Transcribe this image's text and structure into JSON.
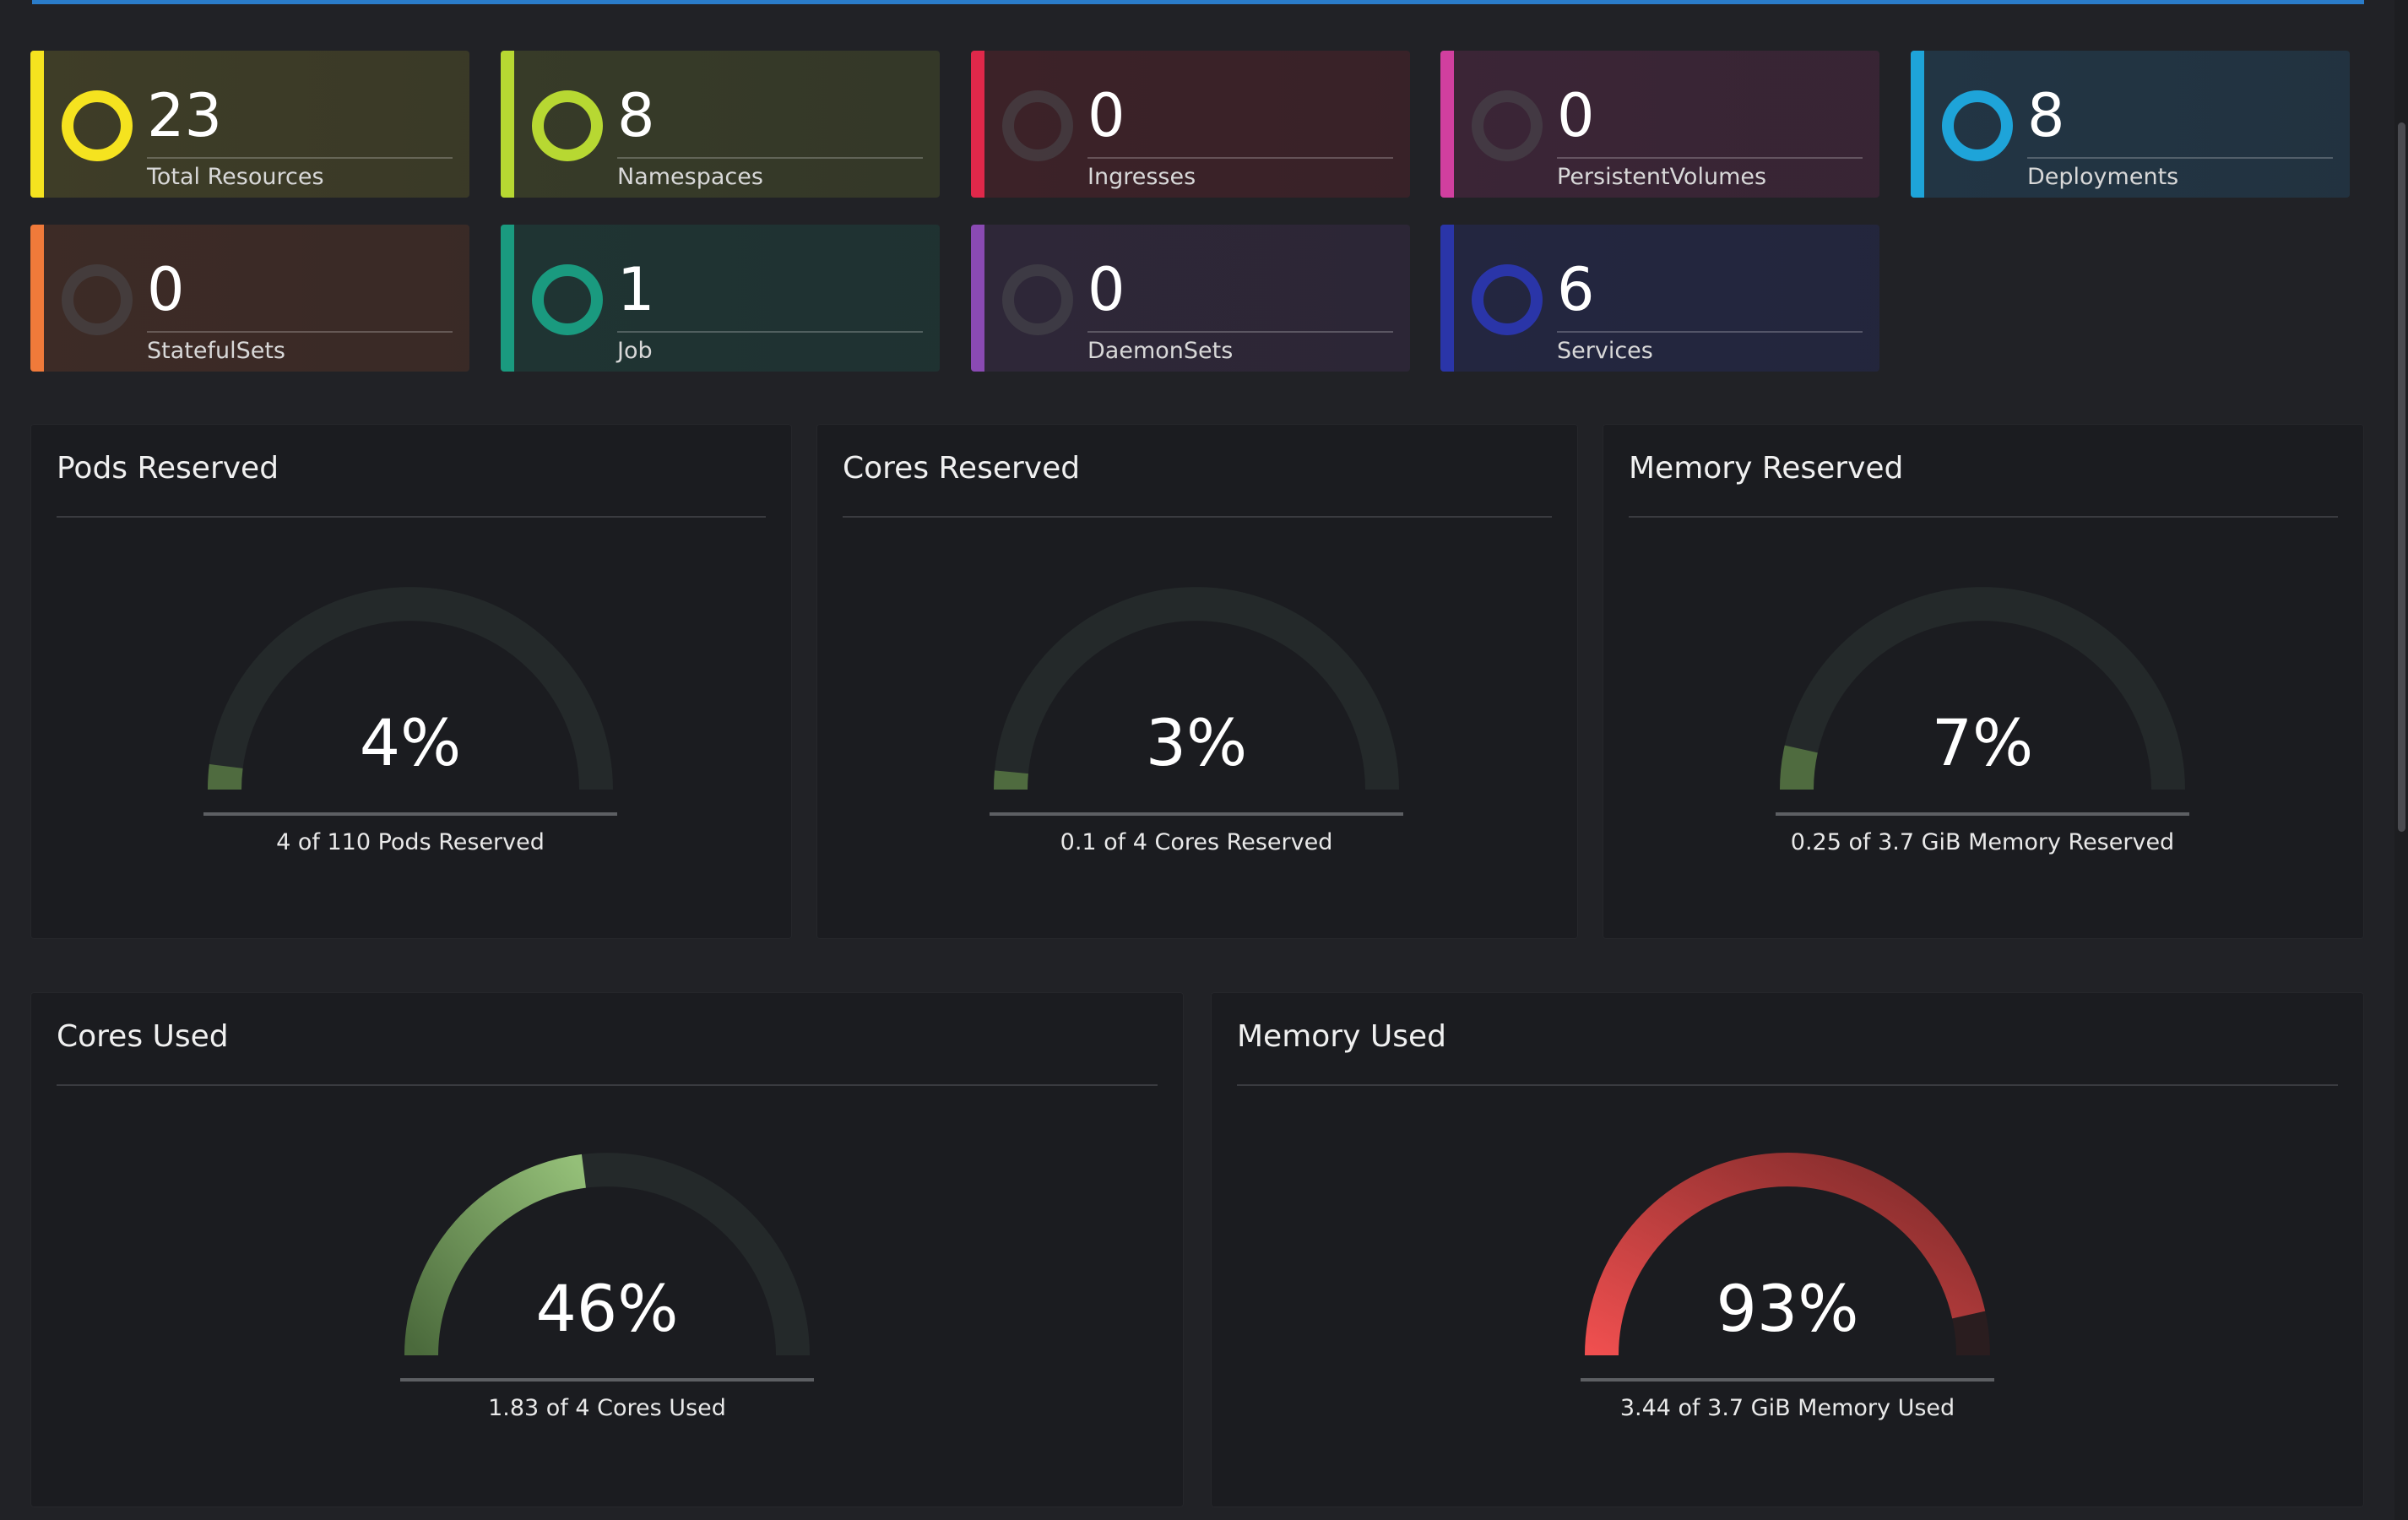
{
  "resources": [
    {
      "count": "23",
      "label": "Total Resources",
      "color": "#f5e31f",
      "bg": "#3e3d27",
      "icon": "ring-icon",
      "active": true
    },
    {
      "count": "8",
      "label": "Namespaces",
      "color": "#b7d832",
      "bg": "#373b28",
      "icon": "ring-icon",
      "active": true
    },
    {
      "count": "0",
      "label": "Ingresses",
      "color": "#e0284a",
      "bg": "#3c2228",
      "icon": "ring-icon",
      "active": false
    },
    {
      "count": "0",
      "label": "PersistentVolumes",
      "color": "#d13f9f",
      "bg": "#3b2536",
      "icon": "ring-icon",
      "active": false
    },
    {
      "count": "8",
      "label": "Deployments",
      "color": "#1ea4d9",
      "bg": "#223544",
      "icon": "ring-icon",
      "active": true
    },
    {
      "count": "0",
      "label": "StatefulSets",
      "color": "#f07a3a",
      "bg": "#3d2b26",
      "icon": "ring-icon",
      "active": false
    },
    {
      "count": "1",
      "label": "Job",
      "color": "#1a9a7f",
      "bg": "#1f3433",
      "icon": "ring-icon",
      "active": true
    },
    {
      "count": "0",
      "label": "DaemonSets",
      "color": "#8a4ab3",
      "bg": "#2e2738",
      "icon": "ring-icon",
      "active": false
    },
    {
      "count": "6",
      "label": "Services",
      "color": "#2a35a8",
      "bg": "#232640",
      "icon": "ring-icon",
      "active": true
    }
  ],
  "gauges": [
    {
      "title": "Pods Reserved",
      "percent_text": "4%",
      "value": 0.04,
      "caption": "4 of 110 Pods Reserved",
      "color_start": "#4f6b3f",
      "color_end": "#4f6b3f"
    },
    {
      "title": "Cores Reserved",
      "percent_text": "3%",
      "value": 0.03,
      "caption": "0.1 of 4 Cores Reserved",
      "color_start": "#4f6b3f",
      "color_end": "#4f6b3f"
    },
    {
      "title": "Memory Reserved",
      "percent_text": "7%",
      "value": 0.07,
      "caption": "0.25 of 3.7 GiB Memory Reserved",
      "color_start": "#4f6b3f",
      "color_end": "#4f6b3f"
    },
    {
      "title": "Cores Used",
      "percent_text": "46%",
      "value": 0.46,
      "caption": "1.83 of 4 Cores Used",
      "color_start": "#4b6a3c",
      "color_end": "#94bf78"
    },
    {
      "title": "Memory Used",
      "percent_text": "93%",
      "value": 0.93,
      "caption": "3.44 of 3.7 GiB Memory Used",
      "color_start": "#ef4f4f",
      "color_end": "#7d2a2a"
    }
  ],
  "colors": {
    "gauge_track": "#24292a",
    "top_bar": "#2a7cc9"
  }
}
